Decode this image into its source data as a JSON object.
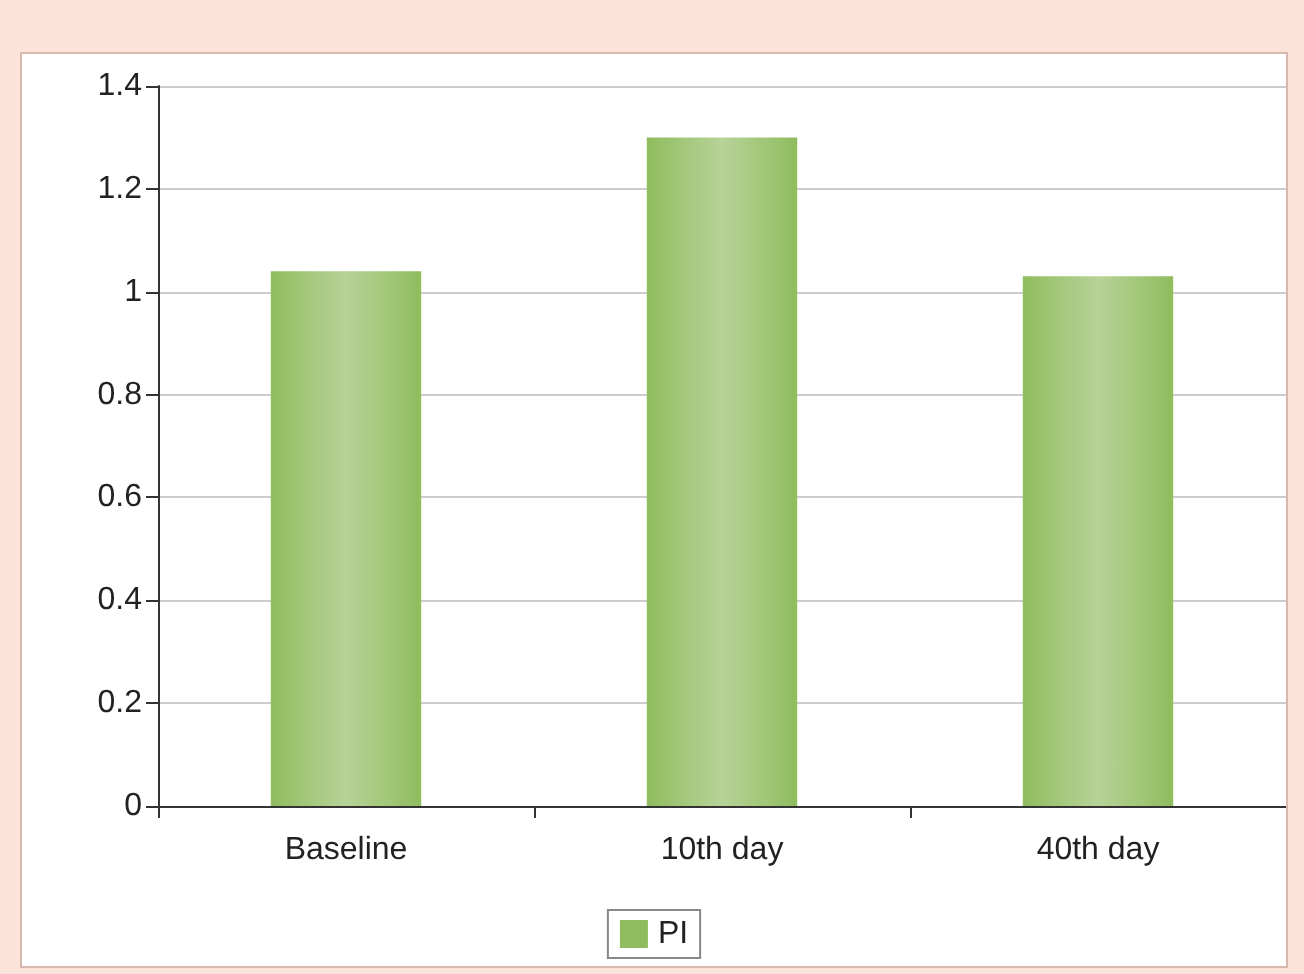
{
  "chart_data": {
    "type": "bar",
    "categories": [
      "Baseline",
      "10th day",
      "40th day"
    ],
    "series": [
      {
        "name": "PI",
        "color": "#8fbc5e",
        "values": [
          1.04,
          1.3,
          1.03
        ]
      }
    ],
    "ylim": [
      0,
      1.4
    ],
    "yticks": [
      0,
      0.2,
      0.4,
      0.6,
      0.8,
      1,
      1.2,
      1.4
    ],
    "grid": "y",
    "legend": "bottom"
  }
}
